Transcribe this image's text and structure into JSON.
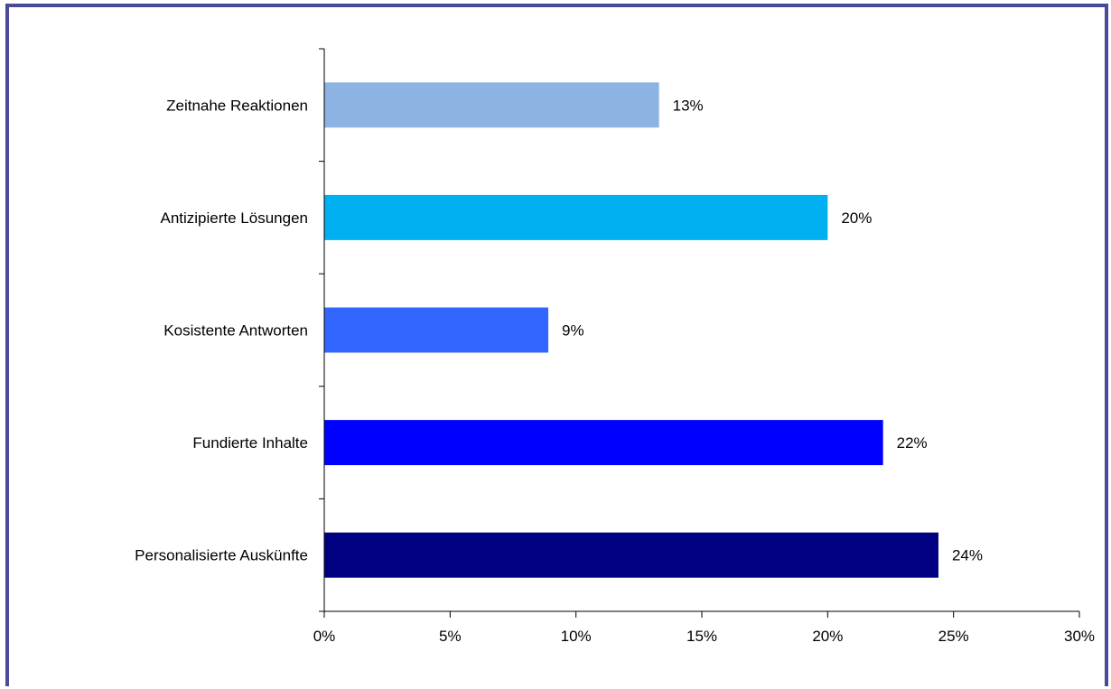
{
  "chart_data": {
    "type": "bar",
    "orientation": "horizontal",
    "categories": [
      "Zeitnahe Reaktionen",
      "Antizipierte Lösungen",
      "Kosistente Antworten",
      "Fundierte Inhalte",
      "Personalisierte Auskünfte"
    ],
    "values": [
      13.3,
      20.0,
      8.9,
      22.2,
      24.4
    ],
    "value_labels": [
      "13%",
      "20%",
      "9%",
      "22%",
      "24%"
    ],
    "bar_colors": [
      "#8db3e2",
      "#00b0f0",
      "#3366ff",
      "#0000ff",
      "#000080"
    ],
    "title": "",
    "xlabel": "",
    "ylabel": "",
    "xlim": [
      0,
      30
    ],
    "x_ticks": [
      0,
      5,
      10,
      15,
      20,
      25,
      30
    ],
    "x_tick_labels": [
      "0%",
      "5%",
      "10%",
      "15%",
      "20%",
      "25%",
      "30%"
    ],
    "grid": false,
    "legend": "none"
  },
  "colors": {
    "frame": "#4a4a9a",
    "axis": "#000000"
  }
}
